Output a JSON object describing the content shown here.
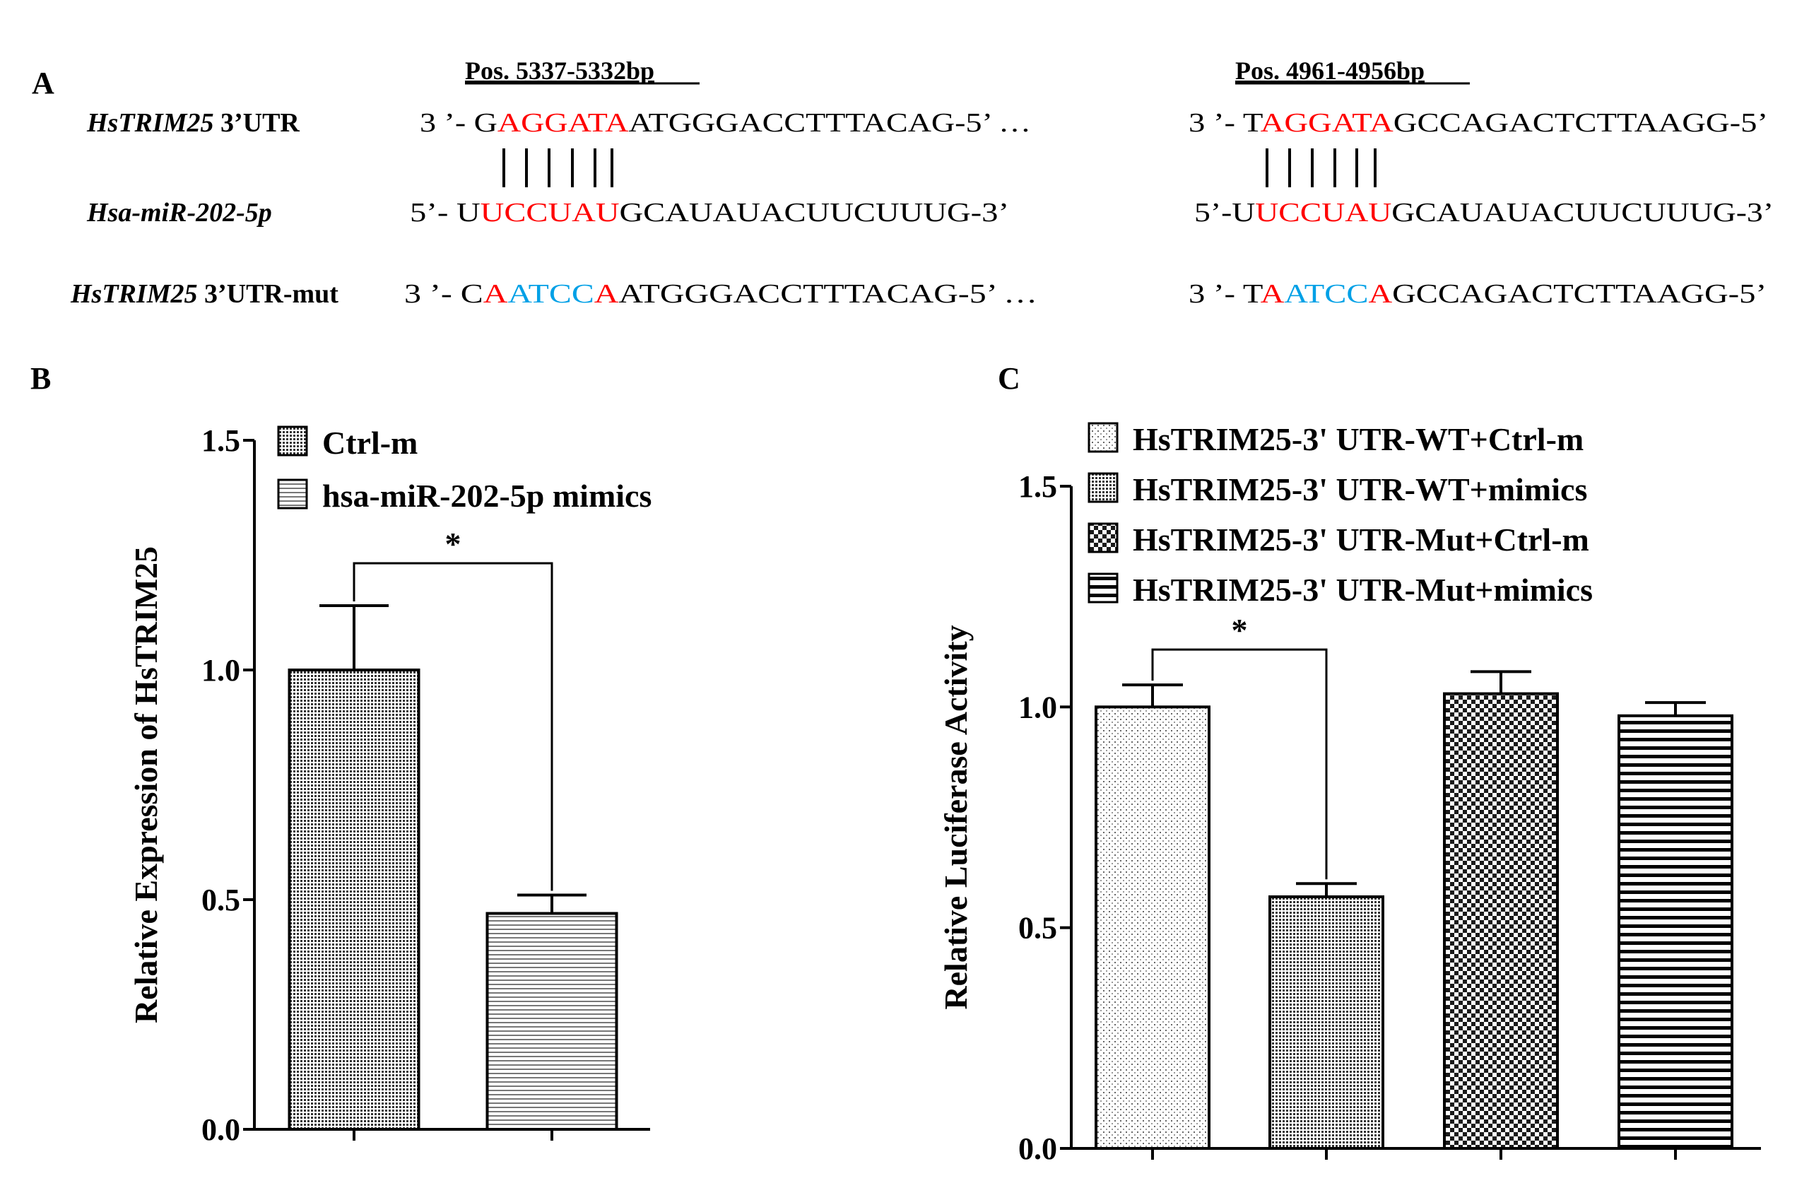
{
  "colors": {
    "ink": "#000000",
    "seed_red": "#ff0000",
    "mut_blue": "#00a0e6"
  },
  "panel_a": {
    "letter": "A",
    "site1_pos": "Pos. 5337-5332bp",
    "site2_pos": "Pos. 4961-4956bp",
    "row_labels": [
      {
        "gene": "HsTRIM25",
        "suffix": " 3’UTR"
      },
      {
        "gene": "Hsa-miR-202-5p",
        "suffix": ""
      },
      {
        "gene": "HsTRIM25",
        "suffix": " 3’UTR-mut"
      }
    ],
    "site1": {
      "wt": [
        {
          "t": "3 ’- G",
          "c": "ink"
        },
        {
          "t": "AGGATA",
          "c": "seed_red"
        },
        {
          "t": "ATGGGACCTTTACAG-5’   …",
          "c": "ink"
        }
      ],
      "mir": [
        {
          "t": "5’-  U",
          "c": "ink"
        },
        {
          "t": "UCCUAU",
          "c": "seed_red"
        },
        {
          "t": "GCAUAUACUUCUUUG-3’",
          "c": "ink"
        }
      ],
      "mut": [
        {
          "t": "3 ’- C",
          "c": "ink"
        },
        {
          "t": "A",
          "c": "seed_red"
        },
        {
          "t": "ATCC",
          "c": "mut_blue"
        },
        {
          "t": "A",
          "c": "seed_red"
        },
        {
          "t": "ATGGGACCTTTACAG-5’  …",
          "c": "ink"
        }
      ]
    },
    "site2": {
      "wt": [
        {
          "t": "3 ’- T",
          "c": "ink"
        },
        {
          "t": "AGGATA",
          "c": "seed_red"
        },
        {
          "t": "GCCAGACTCTTAAGG-5’",
          "c": "ink"
        }
      ],
      "mir": [
        {
          "t": "5’-U",
          "c": "ink"
        },
        {
          "t": "UCCUAU",
          "c": "seed_red"
        },
        {
          "t": "GCAUAUACUUCUUUG-3’",
          "c": "ink"
        }
      ],
      "mut": [
        {
          "t": "3 ’- T",
          "c": "ink"
        },
        {
          "t": "A",
          "c": "seed_red"
        },
        {
          "t": "ATCC",
          "c": "mut_blue"
        },
        {
          "t": "A",
          "c": "seed_red"
        },
        {
          "t": "GCCAGACTCTTAAGG-5’",
          "c": "ink"
        }
      ]
    }
  },
  "chart_data": [
    {
      "panel": "B",
      "type": "bar",
      "ylabel": "Relative Expression of HsTRIM25",
      "xlabel": "",
      "ylim": [
        0,
        1.5
      ],
      "yticks": [
        0.0,
        0.5,
        1.0,
        1.5
      ],
      "ytick_labels": [
        "0.0",
        "0.5",
        "1.0",
        "1.5"
      ],
      "categories": [
        "Ctrl-m",
        "hsa-miR-202-5p mimics"
      ],
      "series": [
        {
          "name": "Ctrl-m",
          "value": 1.0,
          "error": 0.14,
          "pattern": "fine-dense"
        },
        {
          "name": "hsa-miR-202-5p mimics",
          "value": 0.47,
          "error": 0.04,
          "pattern": "hlines-fine"
        }
      ],
      "significance": [
        {
          "from": 0,
          "to": 1,
          "label": "*"
        }
      ],
      "legend_position": "top"
    },
    {
      "panel": "C",
      "type": "bar",
      "ylabel": "Relative Luciferase  Activity",
      "xlabel": "",
      "ylim": [
        0,
        1.5
      ],
      "yticks": [
        0.0,
        0.5,
        1.0,
        1.5
      ],
      "ytick_labels": [
        "0.0",
        "0.5",
        "1.0",
        "1.5"
      ],
      "categories": [
        "HsTRIM25-3' UTR-WT+Ctrl-m",
        "HsTRIM25-3' UTR-WT+mimics",
        "HsTRIM25-3' UTR-Mut+Ctrl-m",
        "HsTRIM25-3' UTR-Mut+mimics"
      ],
      "series": [
        {
          "name": "HsTRIM25-3' UTR-WT+Ctrl-m",
          "value": 1.0,
          "error": 0.05,
          "pattern": "sparse-dots"
        },
        {
          "name": "HsTRIM25-3' UTR-WT+mimics",
          "value": 0.57,
          "error": 0.03,
          "pattern": "fine-dense"
        },
        {
          "name": "HsTRIM25-3' UTR-Mut+Ctrl-m",
          "value": 1.03,
          "error": 0.05,
          "pattern": "checker"
        },
        {
          "name": "HsTRIM25-3' UTR-Mut+mimics",
          "value": 0.98,
          "error": 0.03,
          "pattern": "hlines-bold"
        }
      ],
      "significance": [
        {
          "from": 0,
          "to": 1,
          "label": "*"
        }
      ],
      "legend_position": "top"
    }
  ]
}
